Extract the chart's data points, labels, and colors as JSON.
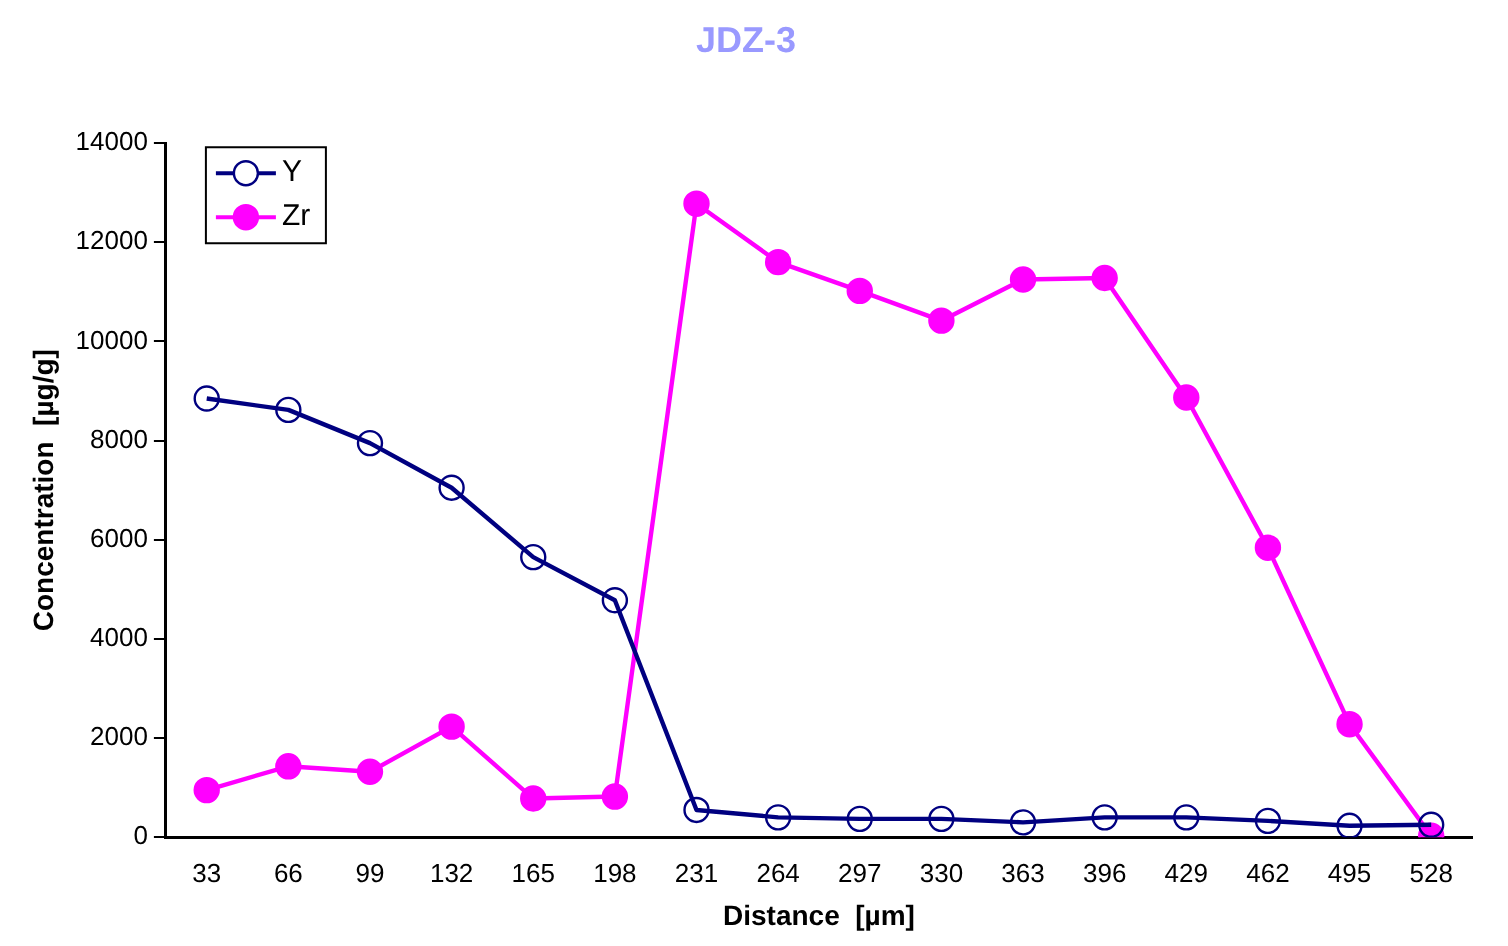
{
  "chart_data": {
    "type": "line",
    "title": "JDZ-3",
    "xlabel": "Distance  [µm]",
    "ylabel": "Concentration  [µg/g]",
    "categories": [
      "33",
      "66",
      "99",
      "132",
      "165",
      "198",
      "231",
      "264",
      "297",
      "330",
      "363",
      "396",
      "429",
      "462",
      "495",
      "528"
    ],
    "series": [
      {
        "name": "Y",
        "color": "#000080",
        "marker": "circle",
        "values": [
          8850,
          8620,
          7950,
          7050,
          5650,
          4780,
          550,
          400,
          370,
          370,
          300,
          400,
          400,
          330,
          230,
          250
        ]
      },
      {
        "name": "Zr",
        "color": "#ff00ff",
        "marker": "circle",
        "values": [
          950,
          1430,
          1320,
          2230,
          780,
          820,
          12780,
          11600,
          11020,
          10420,
          11250,
          11280,
          8870,
          5840,
          2280,
          30
        ]
      }
    ],
    "ylim": [
      0,
      14000
    ],
    "yticks": [
      0,
      2000,
      4000,
      6000,
      8000,
      10000,
      12000,
      14000
    ],
    "grid": false,
    "legend": "top left"
  }
}
